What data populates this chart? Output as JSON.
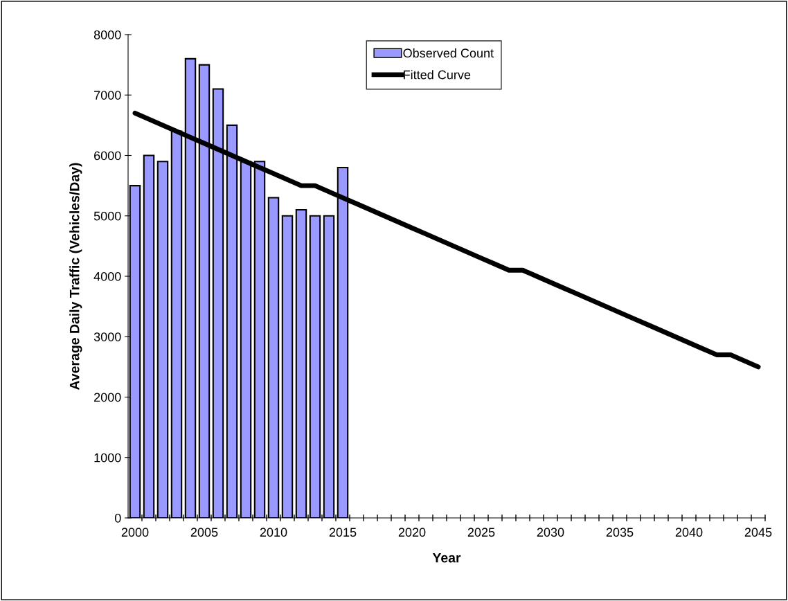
{
  "chart_data": {
    "type": "bar",
    "xlabel": "Year",
    "ylabel": "Average Daily Traffic (Vehicles/Day)",
    "categories": [
      "2000",
      null,
      null,
      null,
      null,
      "2005",
      null,
      null,
      null,
      null,
      "2010",
      null,
      null,
      null,
      null,
      "2015",
      null,
      null,
      null,
      null,
      "2020",
      null,
      null,
      null,
      null,
      "2025",
      null,
      null,
      null,
      null,
      "2030",
      null,
      null,
      null,
      null,
      "2035",
      null,
      null,
      null,
      null,
      "2040",
      null,
      null,
      null,
      null,
      "2045"
    ],
    "series": [
      {
        "name": "Observed Count",
        "color": "#9999ff",
        "values": [
          5500,
          6000,
          5900,
          6400,
          7600,
          7500,
          7100,
          6500,
          5900,
          5900,
          5300,
          5000,
          5100,
          5000,
          5000,
          5800,
          null,
          null,
          null,
          null,
          null,
          null,
          null,
          null,
          null,
          null,
          null,
          null,
          null,
          null,
          null,
          null,
          null,
          null,
          null,
          null,
          null,
          null,
          null,
          null,
          null,
          null,
          null,
          null,
          null,
          null
        ]
      },
      {
        "name": "Fitted Curve",
        "type": "line",
        "color": "#000000",
        "values": [
          6700,
          6600,
          6500,
          6400,
          6300,
          6200,
          6100,
          6000,
          5900,
          5800,
          5700,
          5600,
          5500,
          5500,
          5400,
          5300,
          5200,
          5100,
          5000,
          4900,
          4800,
          4700,
          4600,
          4500,
          4400,
          4300,
          4200,
          4100,
          4100,
          4000,
          3900,
          3800,
          3700,
          3600,
          3500,
          3400,
          3300,
          3200,
          3100,
          3000,
          2900,
          2800,
          2700,
          2700,
          2600,
          2500
        ]
      }
    ],
    "ylim": [
      0,
      8000
    ],
    "yticks": [
      0,
      1000,
      2000,
      3000,
      4000,
      5000,
      6000,
      7000,
      8000
    ],
    "grid": false,
    "legend": "top",
    "line_style": "solid",
    "marker": "none"
  }
}
